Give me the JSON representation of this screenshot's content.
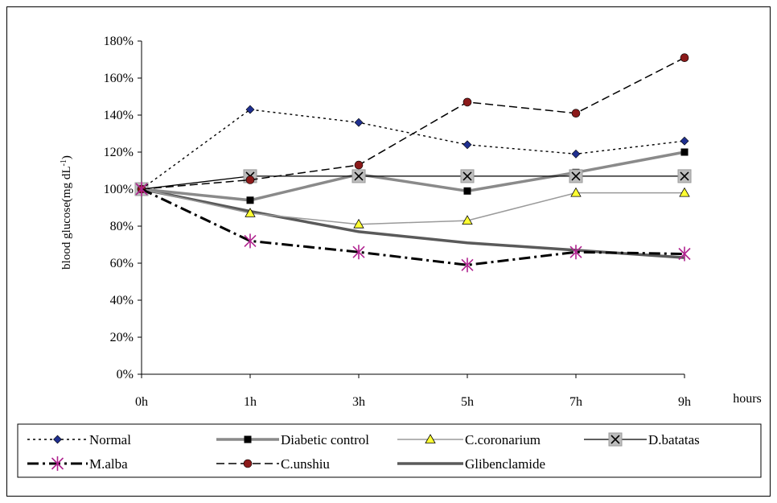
{
  "chart_data": {
    "type": "line",
    "title": "",
    "xlabel": "hours",
    "ylabel": "blood glucose(mg dL⁻¹)",
    "categories": [
      "0h",
      "1h",
      "3h",
      "5h",
      "7h",
      "9h"
    ],
    "ylim": [
      0,
      180
    ],
    "yticks": [
      "0%",
      "20%",
      "40%",
      "60%",
      "80%",
      "100%",
      "120%",
      "140%",
      "160%",
      "180%"
    ],
    "grid": false,
    "legend_position": "bottom",
    "series": [
      {
        "name": "Normal",
        "values": [
          100,
          143,
          136,
          124,
          119,
          126
        ],
        "color": "#000000",
        "marker_color": "#1f2f8f",
        "marker": "diamond",
        "dash": "3,4",
        "width": 1.4
      },
      {
        "name": "Diabetic control",
        "values": [
          100,
          94,
          108,
          99,
          109,
          120
        ],
        "color": "#8a8a8a",
        "marker_color": "#000000",
        "marker": "square",
        "dash": "",
        "width": 3.5
      },
      {
        "name": "C.coronarium",
        "values": [
          100,
          87,
          81,
          83,
          98,
          98
        ],
        "color": "#9a9a9a",
        "marker_color": "#ffff33",
        "marker": "triangle",
        "dash": "",
        "width": 1.5
      },
      {
        "name": "D.batatas",
        "values": [
          100,
          107,
          107,
          107,
          107,
          107
        ],
        "color": "#000000",
        "marker_color": "#bdbdbd",
        "marker": "xbox",
        "dash": "",
        "width": 1.3
      },
      {
        "name": "M.alba",
        "values": [
          100,
          72,
          66,
          59,
          66,
          65
        ],
        "color": "#000000",
        "marker_color": "#b0238f",
        "marker": "star",
        "dash": "14,5,3,5",
        "width": 3
      },
      {
        "name": "C.unshiu",
        "values": [
          100,
          105,
          113,
          147,
          141,
          171
        ],
        "color": "#000000",
        "marker_color": "#8b1a1a",
        "marker": "circle",
        "dash": "10,5",
        "width": 1.5
      },
      {
        "name": "Glibenclamide",
        "values": [
          100,
          88,
          77,
          71,
          67,
          63
        ],
        "color": "#5a5a5a",
        "marker_color": "",
        "marker": "none",
        "dash": "",
        "width": 3.5
      }
    ]
  }
}
